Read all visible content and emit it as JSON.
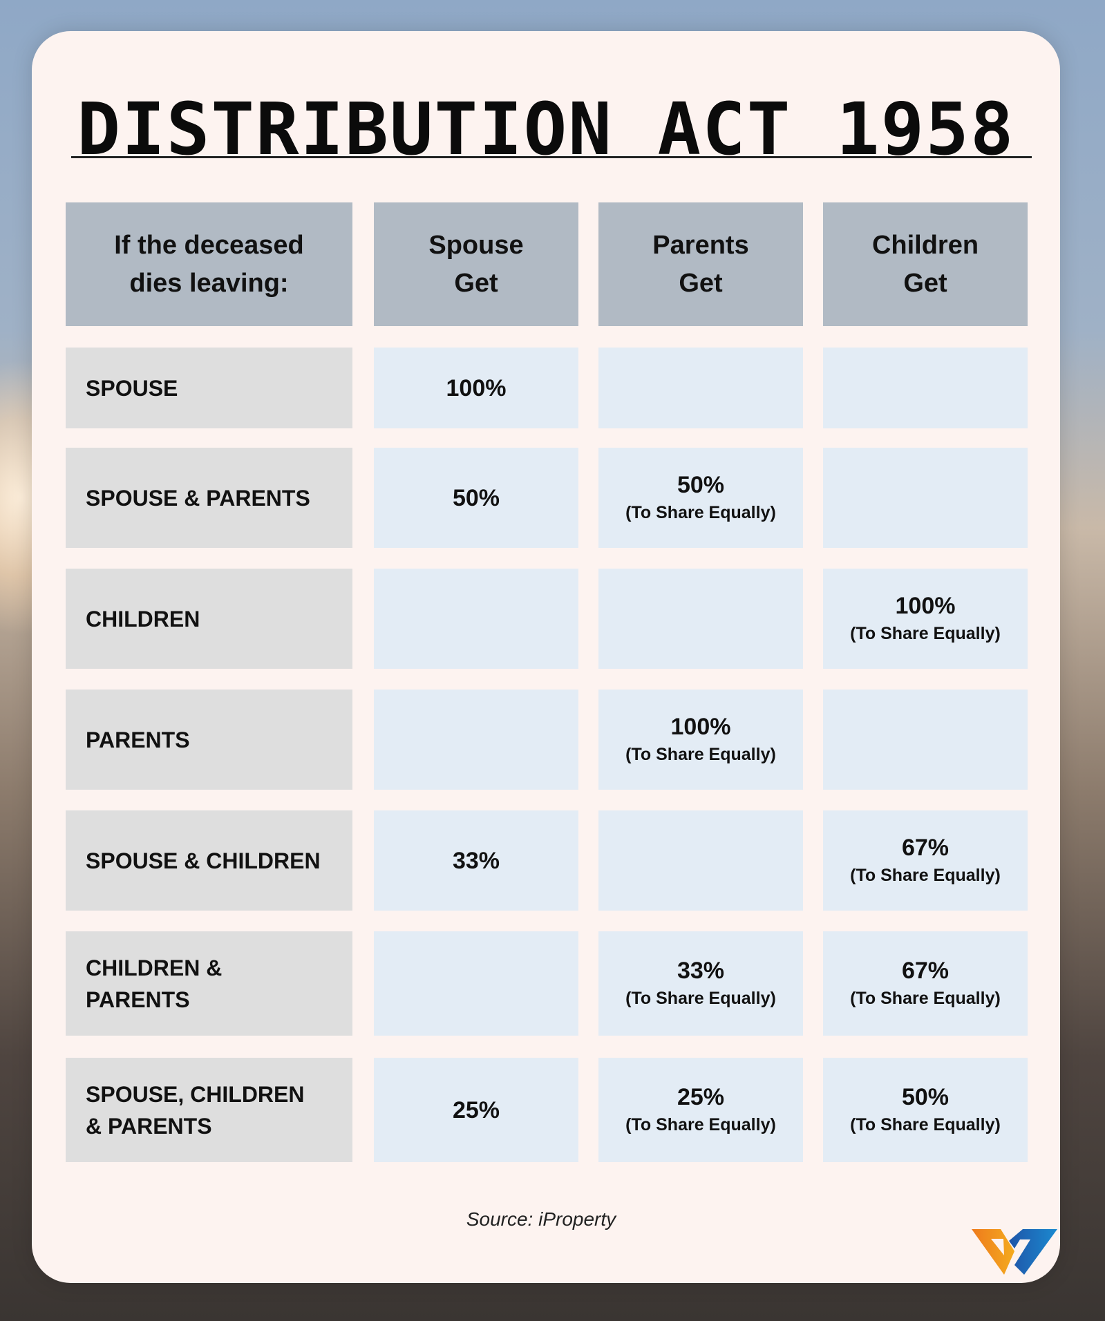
{
  "title": "DISTRIBUTION ACT 1958",
  "table": {
    "headers": [
      {
        "line1": "If the deceased",
        "line2": "dies leaving:"
      },
      {
        "line1": "Spouse",
        "line2": "Get"
      },
      {
        "line1": "Parents",
        "line2": "Get"
      },
      {
        "line1": "Children",
        "line2": "Get"
      }
    ],
    "rows": [
      {
        "label_line1": "SPOUSE",
        "label_line2": "",
        "spouse": {
          "pct": "100%",
          "note": ""
        },
        "parents": {
          "pct": "",
          "note": ""
        },
        "children": {
          "pct": "",
          "note": ""
        }
      },
      {
        "label_line1": "SPOUSE & PARENTS",
        "label_line2": "",
        "spouse": {
          "pct": "50%",
          "note": ""
        },
        "parents": {
          "pct": "50%",
          "note": "(To Share Equally)"
        },
        "children": {
          "pct": "",
          "note": ""
        }
      },
      {
        "label_line1": "CHILDREN",
        "label_line2": "",
        "spouse": {
          "pct": "",
          "note": ""
        },
        "parents": {
          "pct": "",
          "note": ""
        },
        "children": {
          "pct": "100%",
          "note": "(To Share Equally)"
        }
      },
      {
        "label_line1": "PARENTS",
        "label_line2": "",
        "spouse": {
          "pct": "",
          "note": ""
        },
        "parents": {
          "pct": "100%",
          "note": "(To Share Equally)"
        },
        "children": {
          "pct": "",
          "note": ""
        }
      },
      {
        "label_line1": "SPOUSE & CHILDREN",
        "label_line2": "",
        "spouse": {
          "pct": "33%",
          "note": ""
        },
        "parents": {
          "pct": "",
          "note": ""
        },
        "children": {
          "pct": "67%",
          "note": "(To Share Equally)"
        }
      },
      {
        "label_line1": "CHILDREN &",
        "label_line2": "PARENTS",
        "spouse": {
          "pct": "",
          "note": ""
        },
        "parents": {
          "pct": "33%",
          "note": "(To Share Equally)"
        },
        "children": {
          "pct": "67%",
          "note": "(To Share Equally)"
        }
      },
      {
        "label_line1": "SPOUSE, CHILDREN",
        "label_line2": "& PARENTS",
        "spouse": {
          "pct": "25%",
          "note": ""
        },
        "parents": {
          "pct": "25%",
          "note": "(To Share Equally)"
        },
        "children": {
          "pct": "50%",
          "note": "(To Share Equally)"
        }
      }
    ]
  },
  "source": "Source: iProperty",
  "logo": {
    "icon": "brand-logo-icon",
    "colors": [
      "#f07f1e",
      "#f4a81f",
      "#1f5fb0",
      "#1b86cc"
    ]
  },
  "colors": {
    "card": "#fdf3f0",
    "header_cell": "#b1bac4",
    "label_cell": "#dedede",
    "value_cell": "#e3ecf5",
    "text": "#111111"
  }
}
